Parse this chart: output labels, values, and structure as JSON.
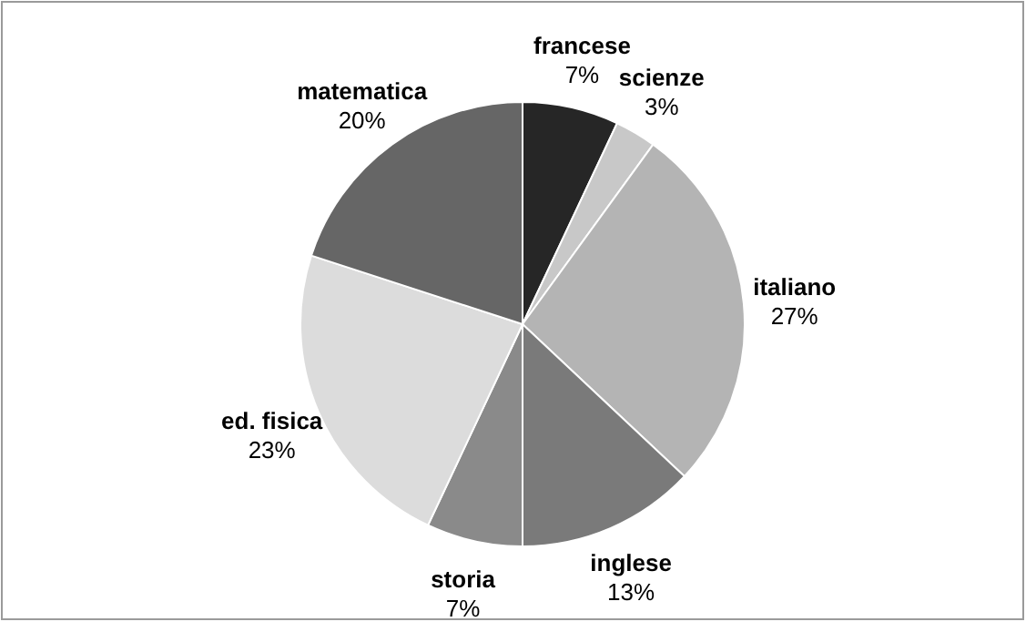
{
  "chart_data": {
    "type": "pie",
    "categories": [
      "francese",
      "scienze",
      "italiano",
      "inglese",
      "storia",
      "ed. fisica",
      "matematica"
    ],
    "values": [
      7,
      3,
      27,
      13,
      7,
      23,
      20
    ],
    "value_labels": [
      "7%",
      "3%",
      "27%",
      "13%",
      "7%",
      "23%",
      "20%"
    ],
    "colors": [
      "#262626",
      "#c8c8c8",
      "#b4b4b4",
      "#7a7a7a",
      "#8a8a8a",
      "#dcdcdc",
      "#666666"
    ],
    "legend": false
  }
}
